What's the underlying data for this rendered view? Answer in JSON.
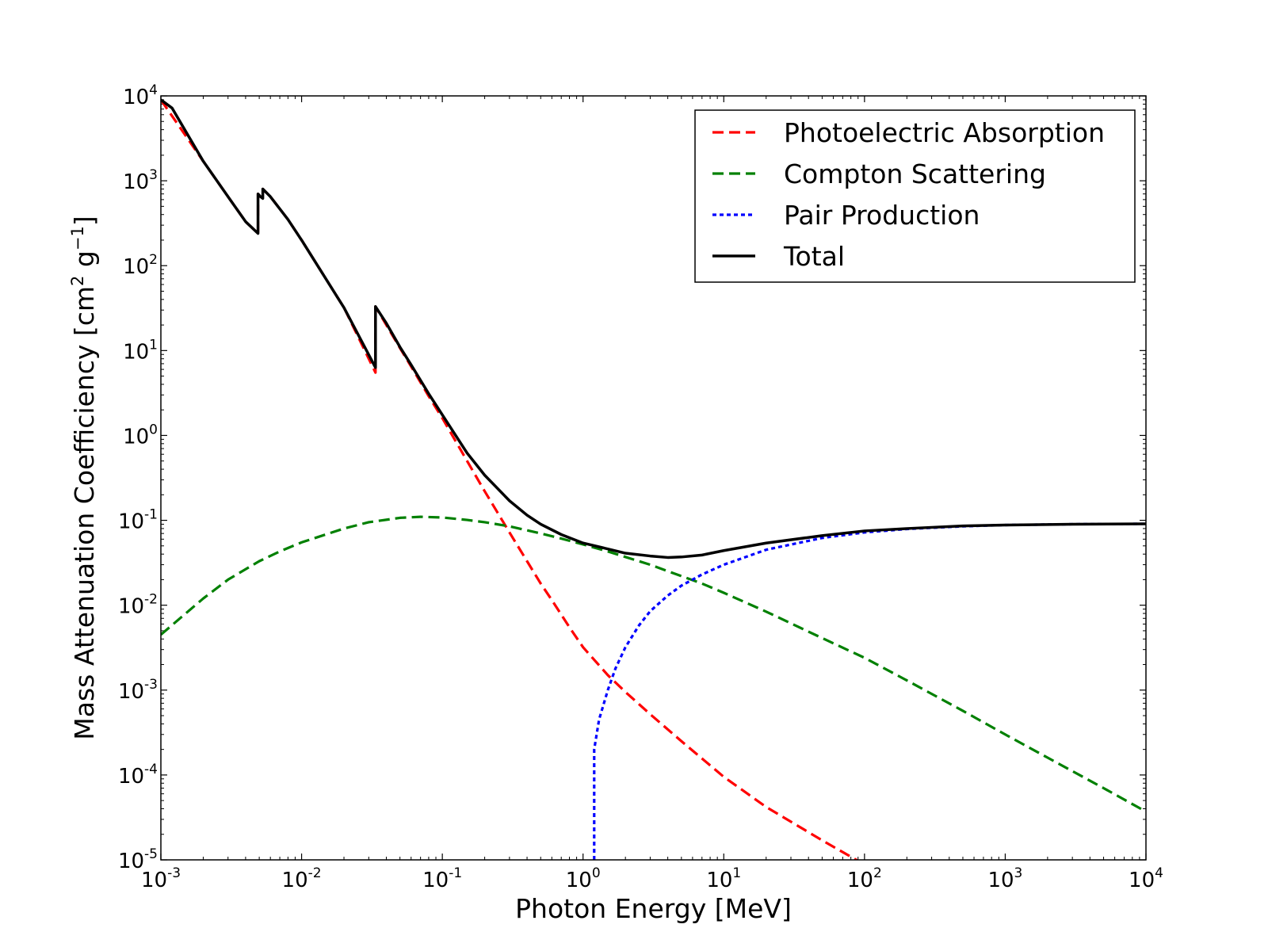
{
  "chart_data": {
    "type": "line",
    "title": "",
    "xlabel": "Photon Energy [MeV]",
    "ylabel": {
      "prefix": "Mass Attenuation Coefficiency [cm",
      "sup1": "2",
      "mid": " g",
      "sup2": "−1",
      "suffix": "]"
    },
    "xscale": "log",
    "yscale": "log",
    "xlim": [
      0.001,
      10000
    ],
    "ylim": [
      1e-05,
      10000
    ],
    "x_ticks": [
      {
        "base": "10",
        "exp": "-3",
        "value": 0.001
      },
      {
        "base": "10",
        "exp": "-2",
        "value": 0.01
      },
      {
        "base": "10",
        "exp": "-1",
        "value": 0.1
      },
      {
        "base": "10",
        "exp": "0",
        "value": 1
      },
      {
        "base": "10",
        "exp": "1",
        "value": 10
      },
      {
        "base": "10",
        "exp": "2",
        "value": 100
      },
      {
        "base": "10",
        "exp": "3",
        "value": 1000
      },
      {
        "base": "10",
        "exp": "4",
        "value": 10000
      }
    ],
    "y_ticks": [
      {
        "base": "10",
        "exp": "-5",
        "value": 1e-05
      },
      {
        "base": "10",
        "exp": "-4",
        "value": 0.0001
      },
      {
        "base": "10",
        "exp": "-3",
        "value": 0.001
      },
      {
        "base": "10",
        "exp": "-2",
        "value": 0.01
      },
      {
        "base": "10",
        "exp": "-1",
        "value": 0.1
      },
      {
        "base": "10",
        "exp": "0",
        "value": 1
      },
      {
        "base": "10",
        "exp": "1",
        "value": 10
      },
      {
        "base": "10",
        "exp": "2",
        "value": 100
      },
      {
        "base": "10",
        "exp": "3",
        "value": 1000
      },
      {
        "base": "10",
        "exp": "4",
        "value": 10000
      }
    ],
    "grid": false,
    "legend_position": "top-right",
    "series": [
      {
        "name": "Photoelectric Absorption",
        "color": "#ff0000",
        "style": "dashed",
        "points": [
          [
            0.001,
            9000
          ],
          [
            0.002,
            1700
          ],
          [
            0.003,
            650
          ],
          [
            0.004,
            330
          ],
          [
            0.0049,
            240
          ],
          [
            0.0049,
            700
          ],
          [
            0.0051,
            650
          ],
          [
            0.0053,
            620
          ],
          [
            0.0053,
            800
          ],
          [
            0.006,
            650
          ],
          [
            0.008,
            350
          ],
          [
            0.01,
            200
          ],
          [
            0.02,
            32
          ],
          [
            0.0335,
            5.5
          ],
          [
            0.0335,
            33
          ],
          [
            0.04,
            20
          ],
          [
            0.05,
            10.7
          ],
          [
            0.06,
            6.5
          ],
          [
            0.08,
            2.9
          ],
          [
            0.1,
            1.6
          ],
          [
            0.15,
            0.5
          ],
          [
            0.2,
            0.22
          ],
          [
            0.3,
            0.072
          ],
          [
            0.4,
            0.033
          ],
          [
            0.5,
            0.018
          ],
          [
            0.6,
            0.0115
          ],
          [
            0.8,
            0.0055
          ],
          [
            1,
            0.0032
          ],
          [
            1.5,
            0.0015
          ],
          [
            2,
            0.00095
          ],
          [
            3,
            0.00052
          ],
          [
            5,
            0.00025
          ],
          [
            10,
            9.5e-05
          ],
          [
            20,
            4.2e-05
          ],
          [
            50,
            1.7e-05
          ],
          [
            100,
            8.8e-06
          ]
        ]
      },
      {
        "name": "Compton Scattering",
        "color": "#008000",
        "style": "dashed",
        "points": [
          [
            0.001,
            0.0045
          ],
          [
            0.002,
            0.012
          ],
          [
            0.003,
            0.02
          ],
          [
            0.005,
            0.033
          ],
          [
            0.007,
            0.043
          ],
          [
            0.01,
            0.055
          ],
          [
            0.02,
            0.08
          ],
          [
            0.03,
            0.095
          ],
          [
            0.05,
            0.107
          ],
          [
            0.07,
            0.11
          ],
          [
            0.1,
            0.108
          ],
          [
            0.15,
            0.101
          ],
          [
            0.2,
            0.095
          ],
          [
            0.3,
            0.085
          ],
          [
            0.5,
            0.07
          ],
          [
            0.7,
            0.061
          ],
          [
            1,
            0.052
          ],
          [
            1.5,
            0.043
          ],
          [
            2,
            0.037
          ],
          [
            3,
            0.03
          ],
          [
            5,
            0.022
          ],
          [
            7,
            0.018
          ],
          [
            10,
            0.014
          ],
          [
            20,
            0.0084
          ],
          [
            50,
            0.0041
          ],
          [
            100,
            0.0024
          ],
          [
            200,
            0.0013
          ],
          [
            500,
            0.00057
          ],
          [
            1000,
            0.0003
          ],
          [
            2000,
            0.00016
          ],
          [
            5000,
            7e-05
          ],
          [
            10000,
            3.7e-05
          ]
        ]
      },
      {
        "name": "Pair Production",
        "color": "#0000ff",
        "style": "dotted",
        "points": [
          [
            1.2,
            1e-05
          ],
          [
            1.2,
            0.0002
          ],
          [
            1.3,
            0.00045
          ],
          [
            1.5,
            0.001
          ],
          [
            1.7,
            0.0018
          ],
          [
            2,
            0.0032
          ],
          [
            2.5,
            0.0058
          ],
          [
            3,
            0.0085
          ],
          [
            4,
            0.013
          ],
          [
            5,
            0.017
          ],
          [
            7,
            0.023
          ],
          [
            10,
            0.03
          ],
          [
            20,
            0.045
          ],
          [
            50,
            0.062
          ],
          [
            100,
            0.072
          ],
          [
            200,
            0.079
          ],
          [
            500,
            0.085
          ],
          [
            1000,
            0.088
          ],
          [
            3000,
            0.09
          ],
          [
            10000,
            0.091
          ]
        ]
      },
      {
        "name": "Total",
        "color": "#000000",
        "style": "solid",
        "points": [
          [
            0.001,
            9000
          ],
          [
            0.0012,
            7200
          ],
          [
            0.002,
            1700
          ],
          [
            0.003,
            650
          ],
          [
            0.004,
            330
          ],
          [
            0.0049,
            240
          ],
          [
            0.0049,
            700
          ],
          [
            0.0051,
            650
          ],
          [
            0.0053,
            620
          ],
          [
            0.0053,
            800
          ],
          [
            0.006,
            650
          ],
          [
            0.008,
            350
          ],
          [
            0.01,
            200
          ],
          [
            0.02,
            32
          ],
          [
            0.0335,
            6.3
          ],
          [
            0.0335,
            33
          ],
          [
            0.04,
            21
          ],
          [
            0.05,
            11
          ],
          [
            0.06,
            6.8
          ],
          [
            0.08,
            3.1
          ],
          [
            0.1,
            1.75
          ],
          [
            0.15,
            0.62
          ],
          [
            0.2,
            0.34
          ],
          [
            0.3,
            0.17
          ],
          [
            0.4,
            0.115
          ],
          [
            0.5,
            0.09
          ],
          [
            0.7,
            0.068
          ],
          [
            1,
            0.054
          ],
          [
            1.5,
            0.046
          ],
          [
            2,
            0.041
          ],
          [
            3,
            0.038
          ],
          [
            4,
            0.0365
          ],
          [
            5,
            0.037
          ],
          [
            7,
            0.039
          ],
          [
            10,
            0.044
          ],
          [
            20,
            0.054
          ],
          [
            50,
            0.066
          ],
          [
            100,
            0.075
          ],
          [
            200,
            0.08
          ],
          [
            500,
            0.086
          ],
          [
            1000,
            0.088
          ],
          [
            3000,
            0.09
          ],
          [
            10000,
            0.091
          ]
        ]
      }
    ]
  }
}
